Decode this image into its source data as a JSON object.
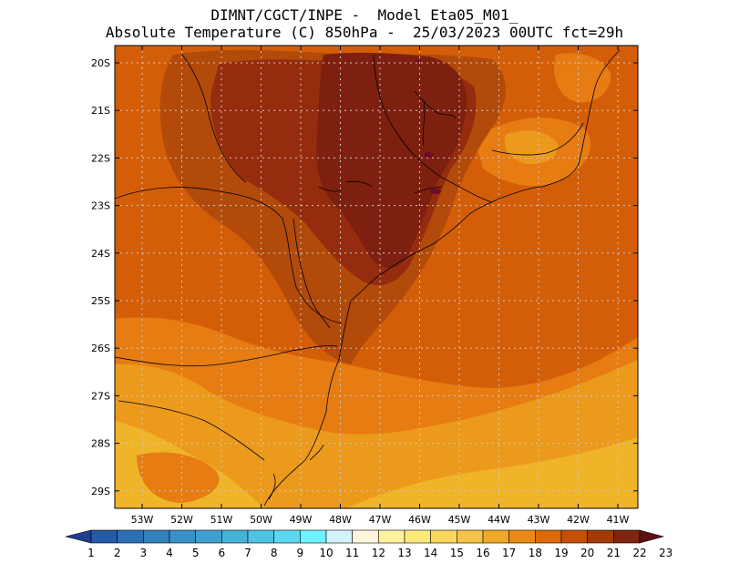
{
  "header": {
    "line1": "DIMNT/CGCT/INPE -  Model Eta05_M01_",
    "line2": "Absolute Temperature (C) 850hPa -  25/03/2023 00UTC fct=29h"
  },
  "axes": {
    "lat_labels": [
      "20S",
      "21S",
      "22S",
      "23S",
      "24S",
      "25S",
      "26S",
      "27S",
      "28S",
      "29S"
    ],
    "lon_labels": [
      "53W",
      "52W",
      "51W",
      "50W",
      "49W",
      "48W",
      "47W",
      "46W",
      "45W",
      "44W",
      "43W",
      "42W",
      "41W"
    ]
  },
  "colorbar": {
    "labels": [
      "1",
      "2",
      "3",
      "4",
      "5",
      "6",
      "7",
      "8",
      "9",
      "10",
      "11",
      "12",
      "13",
      "14",
      "15",
      "16",
      "17",
      "18",
      "19",
      "20",
      "21",
      "22",
      "23"
    ],
    "colors": [
      "#1c3f8f",
      "#245aa6",
      "#2c6fb3",
      "#3480bd",
      "#3a90c6",
      "#3fa0cf",
      "#45b2d8",
      "#4ec4e2",
      "#5cd8ef",
      "#6ef2ff",
      "#d4f4fb",
      "#fff6dc",
      "#fff2a0",
      "#fde97a",
      "#f9d860",
      "#f5c34a",
      "#f0a828",
      "#ea8a16",
      "#dc6a0a",
      "#c44f06",
      "#a23a08",
      "#7e2410",
      "#5e0f14"
    ]
  },
  "map_fills": {
    "c16": "#f0b428",
    "c17": "#ec9a1c",
    "c18": "#e67c12",
    "c19": "#d45e08",
    "c20": "#b24a0a",
    "c21": "#962c0e",
    "c22": "#7e2010",
    "c23": "#6e0a2a"
  }
}
